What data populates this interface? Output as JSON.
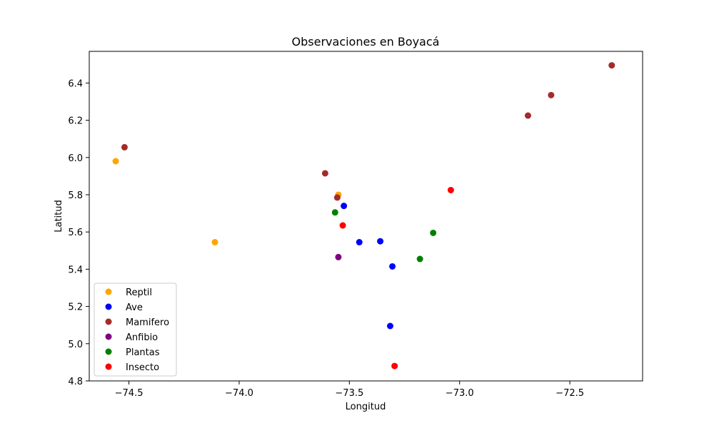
{
  "chart_data": {
    "type": "scatter",
    "title": "Observaciones en Boyacá",
    "xlabel": "Longitud",
    "ylabel": "Latitud",
    "xlim": [
      -74.68,
      -72.17
    ],
    "ylim": [
      4.8,
      6.57
    ],
    "xticks": [
      -74.5,
      -74.0,
      -73.5,
      -73.0,
      -72.5
    ],
    "xtick_labels": [
      "−74.5",
      "−74.0",
      "−73.5",
      "−73.0",
      "−72.5"
    ],
    "yticks": [
      4.8,
      5.0,
      5.2,
      5.4,
      5.6,
      5.8,
      6.0,
      6.2,
      6.4
    ],
    "ytick_labels": [
      "4.8",
      "5.0",
      "5.2",
      "5.4",
      "5.6",
      "5.8",
      "6.0",
      "6.2",
      "6.4"
    ],
    "grid": false,
    "legend_position": "bottom-left",
    "series": [
      {
        "name": "Reptil",
        "color": "#ffa500",
        "points": [
          {
            "x": -74.56,
            "y": 5.98
          },
          {
            "x": -74.11,
            "y": 5.545
          },
          {
            "x": -73.55,
            "y": 5.8
          }
        ]
      },
      {
        "name": "Ave",
        "color": "#0000ff",
        "points": [
          {
            "x": -73.525,
            "y": 5.74
          },
          {
            "x": -73.455,
            "y": 5.545
          },
          {
            "x": -73.36,
            "y": 5.55
          },
          {
            "x": -73.305,
            "y": 5.415
          },
          {
            "x": -73.315,
            "y": 5.095
          }
        ]
      },
      {
        "name": "Mamifero",
        "color": "#a52a2a",
        "points": [
          {
            "x": -74.52,
            "y": 6.055
          },
          {
            "x": -73.61,
            "y": 5.915
          },
          {
            "x": -73.555,
            "y": 5.785
          },
          {
            "x": -72.69,
            "y": 6.225
          },
          {
            "x": -72.585,
            "y": 6.335
          },
          {
            "x": -72.31,
            "y": 6.495
          }
        ]
      },
      {
        "name": "Anfibio",
        "color": "#800080",
        "points": [
          {
            "x": -73.55,
            "y": 5.465
          }
        ]
      },
      {
        "name": "Plantas",
        "color": "#008000",
        "points": [
          {
            "x": -73.565,
            "y": 5.705
          },
          {
            "x": -73.12,
            "y": 5.595
          },
          {
            "x": -73.18,
            "y": 5.455
          }
        ]
      },
      {
        "name": "Insecto",
        "color": "#ff0000",
        "points": [
          {
            "x": -73.53,
            "y": 5.635
          },
          {
            "x": -73.04,
            "y": 5.825
          },
          {
            "x": -73.295,
            "y": 4.88
          }
        ]
      }
    ]
  }
}
